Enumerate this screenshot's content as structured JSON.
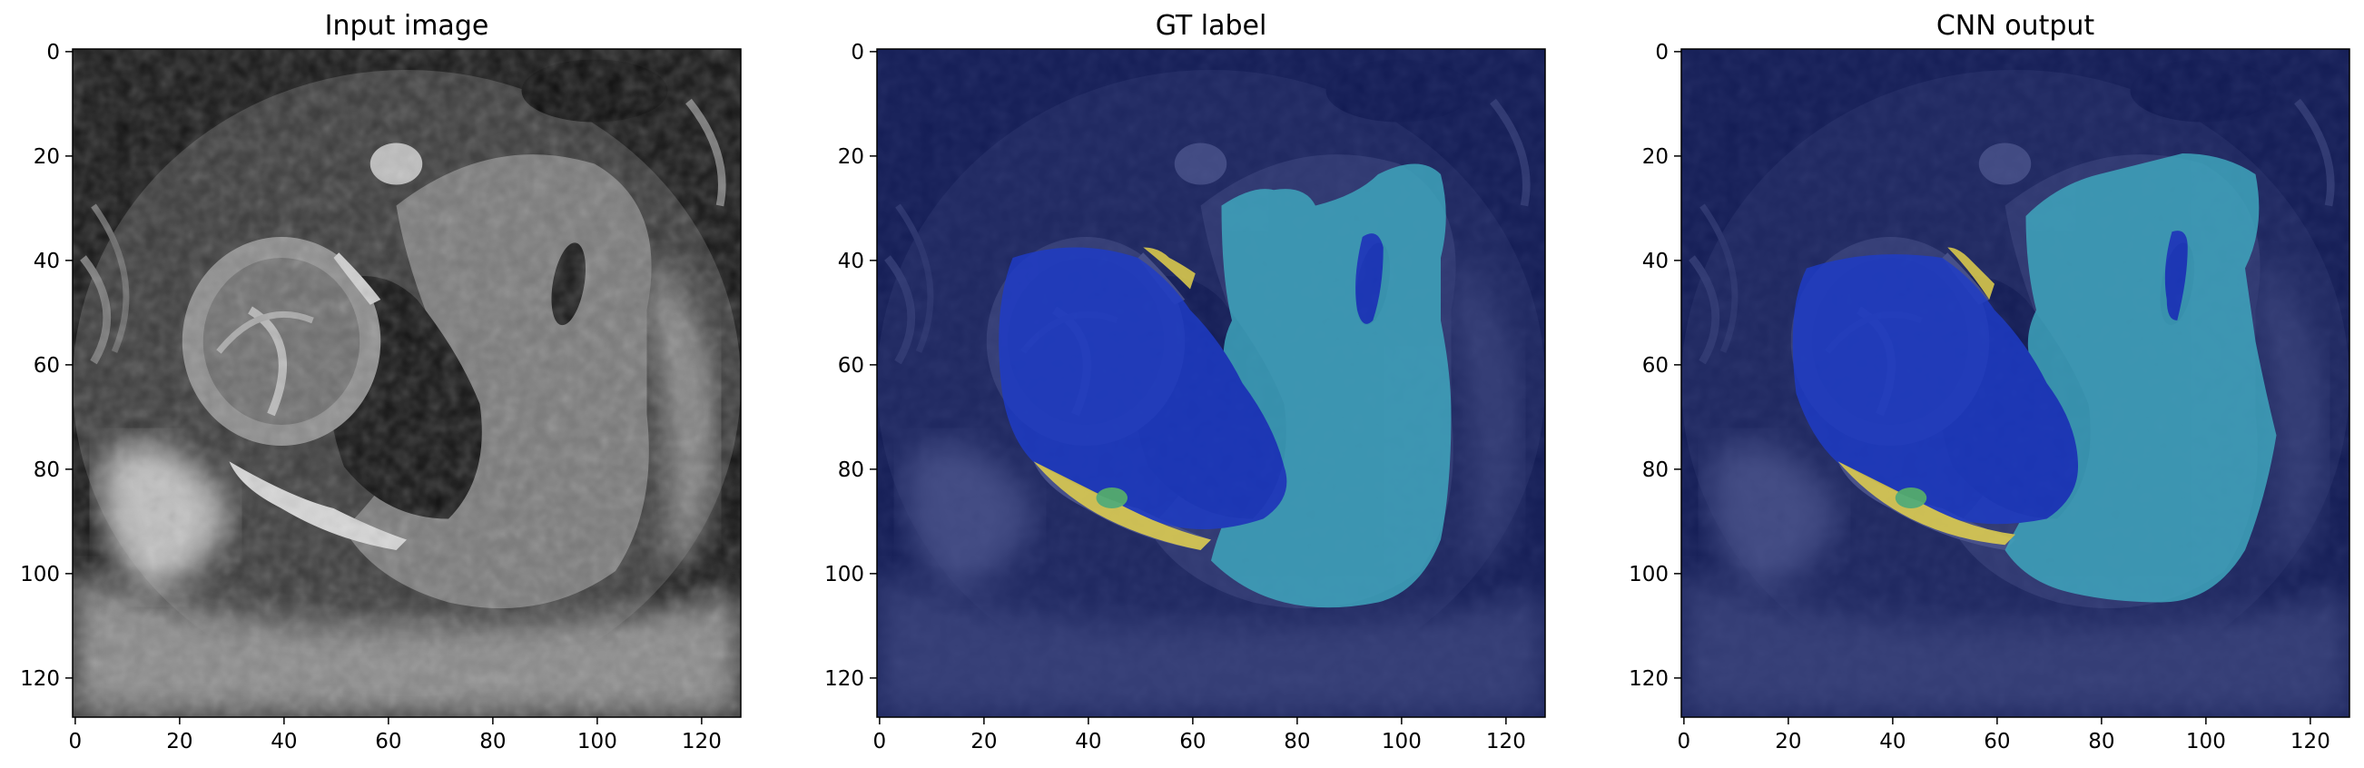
{
  "figure": {
    "panels": [
      {
        "title": "Input image",
        "image": "grayscale-mri-slice",
        "xticks": [
          "0",
          "20",
          "40",
          "60",
          "80",
          "100",
          "120"
        ],
        "yticks": [
          "0",
          "20",
          "40",
          "60",
          "80",
          "100",
          "120"
        ]
      },
      {
        "title": "GT label",
        "image": "mri-slice-with-ground-truth-overlay",
        "xticks": [
          "0",
          "20",
          "40",
          "60",
          "80",
          "100",
          "120"
        ],
        "yticks": [
          "0",
          "20",
          "40",
          "60",
          "80",
          "100",
          "120"
        ]
      },
      {
        "title": "CNN output",
        "image": "mri-slice-with-predicted-overlay",
        "xticks": [
          "0",
          "20",
          "40",
          "60",
          "80",
          "100",
          "120"
        ],
        "yticks": [
          "0",
          "20",
          "40",
          "60",
          "80",
          "100",
          "120"
        ]
      }
    ],
    "axis_range": [
      0,
      128
    ],
    "colors": {
      "background_overlay": "#14206e",
      "class_blue": "#1e3cc8",
      "class_cyan": "#3fa9bf",
      "class_yellow": "#ead74a",
      "class_green": "#5cc073"
    }
  }
}
